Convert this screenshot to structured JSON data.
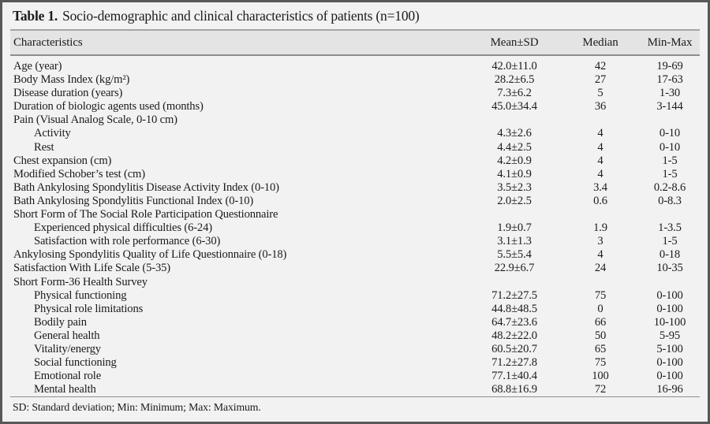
{
  "title": {
    "prefix": "Table 1.",
    "text": "Socio-demographic and clinical characteristics of patients (n=100)"
  },
  "table": {
    "columns": [
      "Characteristics",
      "Mean±SD",
      "Median",
      "Min-Max"
    ],
    "rows": [
      {
        "label": "Age (year)",
        "indent": 0,
        "mean_sd": "42.0±11.0",
        "median": "42",
        "min_max": "19-69"
      },
      {
        "label": "Body Mass Index (kg/m²)",
        "indent": 0,
        "mean_sd": "28.2±6.5",
        "median": "27",
        "min_max": "17-63"
      },
      {
        "label": "Disease duration (years)",
        "indent": 0,
        "mean_sd": "7.3±6.2",
        "median": "5",
        "min_max": "1-30"
      },
      {
        "label": "Duration of biologic agents used (months)",
        "indent": 0,
        "mean_sd": "45.0±34.4",
        "median": "36",
        "min_max": "3-144"
      },
      {
        "label": "Pain (Visual Analog Scale, 0-10 cm)",
        "indent": 0,
        "mean_sd": "",
        "median": "",
        "min_max": ""
      },
      {
        "label": "Activity",
        "indent": 1,
        "mean_sd": "4.3±2.6",
        "median": "4",
        "min_max": "0-10"
      },
      {
        "label": "Rest",
        "indent": 1,
        "mean_sd": "4.4±2.5",
        "median": "4",
        "min_max": "0-10"
      },
      {
        "label": "Chest expansion (cm)",
        "indent": 0,
        "mean_sd": "4.2±0.9",
        "median": "4",
        "min_max": "1-5"
      },
      {
        "label": "Modified Schober’s test (cm)",
        "indent": 0,
        "mean_sd": "4.1±0.9",
        "median": "4",
        "min_max": "1-5"
      },
      {
        "label": "Bath Ankylosing Spondylitis Disease Activity Index (0-10)",
        "indent": 0,
        "mean_sd": "3.5±2.3",
        "median": "3.4",
        "min_max": "0.2-8.6"
      },
      {
        "label": "Bath Ankylosing Spondylitis Functional Index (0-10)",
        "indent": 0,
        "mean_sd": "2.0±2.5",
        "median": "0.6",
        "min_max": "0-8.3"
      },
      {
        "label": "Short Form of The Social Role Participation Questionnaire",
        "indent": 0,
        "mean_sd": "",
        "median": "",
        "min_max": ""
      },
      {
        "label": "Experienced physical difficulties (6-24)",
        "indent": 1,
        "mean_sd": "1.9±0.7",
        "median": "1.9",
        "min_max": "1-3.5"
      },
      {
        "label": "Satisfaction with role performance (6-30)",
        "indent": 1,
        "mean_sd": "3.1±1.3",
        "median": "3",
        "min_max": "1-5"
      },
      {
        "label": "Ankylosing Spondylitis Quality of Life Questionnaire (0-18)",
        "indent": 0,
        "mean_sd": "5.5±5.4",
        "median": "4",
        "min_max": "0-18"
      },
      {
        "label": "Satisfaction With Life Scale (5-35)",
        "indent": 0,
        "mean_sd": "22.9±6.7",
        "median": "24",
        "min_max": "10-35"
      },
      {
        "label": "Short Form-36 Health Survey",
        "indent": 0,
        "mean_sd": "",
        "median": "",
        "min_max": ""
      },
      {
        "label": "Physical functioning",
        "indent": 1,
        "mean_sd": "71.2±27.5",
        "median": "75",
        "min_max": "0-100"
      },
      {
        "label": "Physical role limitations",
        "indent": 1,
        "mean_sd": "44.8±48.5",
        "median": "0",
        "min_max": "0-100"
      },
      {
        "label": "Bodily pain",
        "indent": 1,
        "mean_sd": "64.7±23.6",
        "median": "66",
        "min_max": "10-100"
      },
      {
        "label": "General health",
        "indent": 1,
        "mean_sd": "48.2±22.0",
        "median": "50",
        "min_max": "5-95"
      },
      {
        "label": "Vitality/energy",
        "indent": 1,
        "mean_sd": "60.5±20.7",
        "median": "65",
        "min_max": "5-100"
      },
      {
        "label": "Social functioning",
        "indent": 1,
        "mean_sd": "71.2±27.8",
        "median": "75",
        "min_max": "0-100"
      },
      {
        "label": "Emotional role",
        "indent": 1,
        "mean_sd": "77.1±40.4",
        "median": "100",
        "min_max": "0-100"
      },
      {
        "label": "Mental health",
        "indent": 1,
        "mean_sd": "68.8±16.9",
        "median": "72",
        "min_max": "16-96"
      }
    ]
  },
  "footnote": "SD: Standard deviation; Min: Minimum; Max: Maximum.",
  "colors": {
    "table_background": "#f2f2f2",
    "header_band": "#e4e4e4",
    "frame_border": "#585858",
    "rule": "#8d8d8d",
    "text": "#1b1b1b"
  }
}
